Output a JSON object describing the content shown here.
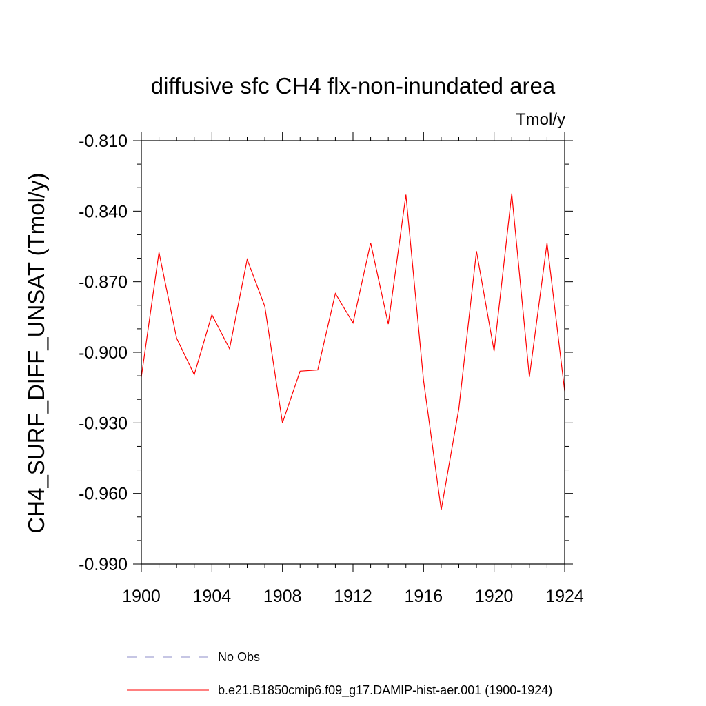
{
  "chart_data": {
    "type": "line",
    "title": "diffusive sfc CH4 flx-non-inundated area",
    "units_label": "Tmol/y",
    "xlabel": "",
    "ylabel": "CH4_SURF_DIFF_UNSAT  (Tmol/y)",
    "xlim": [
      1900,
      1924
    ],
    "ylim": [
      -0.99,
      -0.81
    ],
    "x_ticks": [
      1900,
      1904,
      1908,
      1912,
      1916,
      1920,
      1924
    ],
    "x_tick_labels": [
      "1900",
      "1904",
      "1908",
      "1912",
      "1916",
      "1920",
      "1924"
    ],
    "y_ticks": [
      -0.99,
      -0.96,
      -0.93,
      -0.9,
      -0.87,
      -0.84,
      -0.81
    ],
    "y_tick_labels": [
      "-0.990",
      "-0.960",
      "-0.930",
      "-0.900",
      "-0.870",
      "-0.840",
      "-0.810"
    ],
    "grid": false,
    "legend_position": "bottom",
    "x": [
      1900,
      1901,
      1902,
      1903,
      1904,
      1905,
      1906,
      1907,
      1908,
      1909,
      1910,
      1911,
      1912,
      1913,
      1914,
      1915,
      1916,
      1917,
      1918,
      1919,
      1920,
      1921,
      1922,
      1923,
      1924
    ],
    "series": [
      {
        "name": "b.e21.B1850cmip6.f09_g17.DAMIP-hist-aer.001 (1900-1924)",
        "color": "#ff0000",
        "style": "solid",
        "values": [
          -0.9105,
          -0.8575,
          -0.894,
          -0.9095,
          -0.884,
          -0.8985,
          -0.8605,
          -0.8805,
          -0.93,
          -0.908,
          -0.9075,
          -0.875,
          -0.8875,
          -0.8535,
          -0.888,
          -0.833,
          -0.912,
          -0.967,
          -0.924,
          -0.857,
          -0.8995,
          -0.8325,
          -0.9105,
          -0.8535,
          -0.9165
        ]
      }
    ],
    "legend": [
      {
        "label": "No Obs",
        "color": "#8c8cc8",
        "style": "dashed"
      },
      {
        "label": "b.e21.B1850cmip6.f09_g17.DAMIP-hist-aer.001 (1900-1924)",
        "color": "#ff0000",
        "style": "solid"
      }
    ]
  }
}
